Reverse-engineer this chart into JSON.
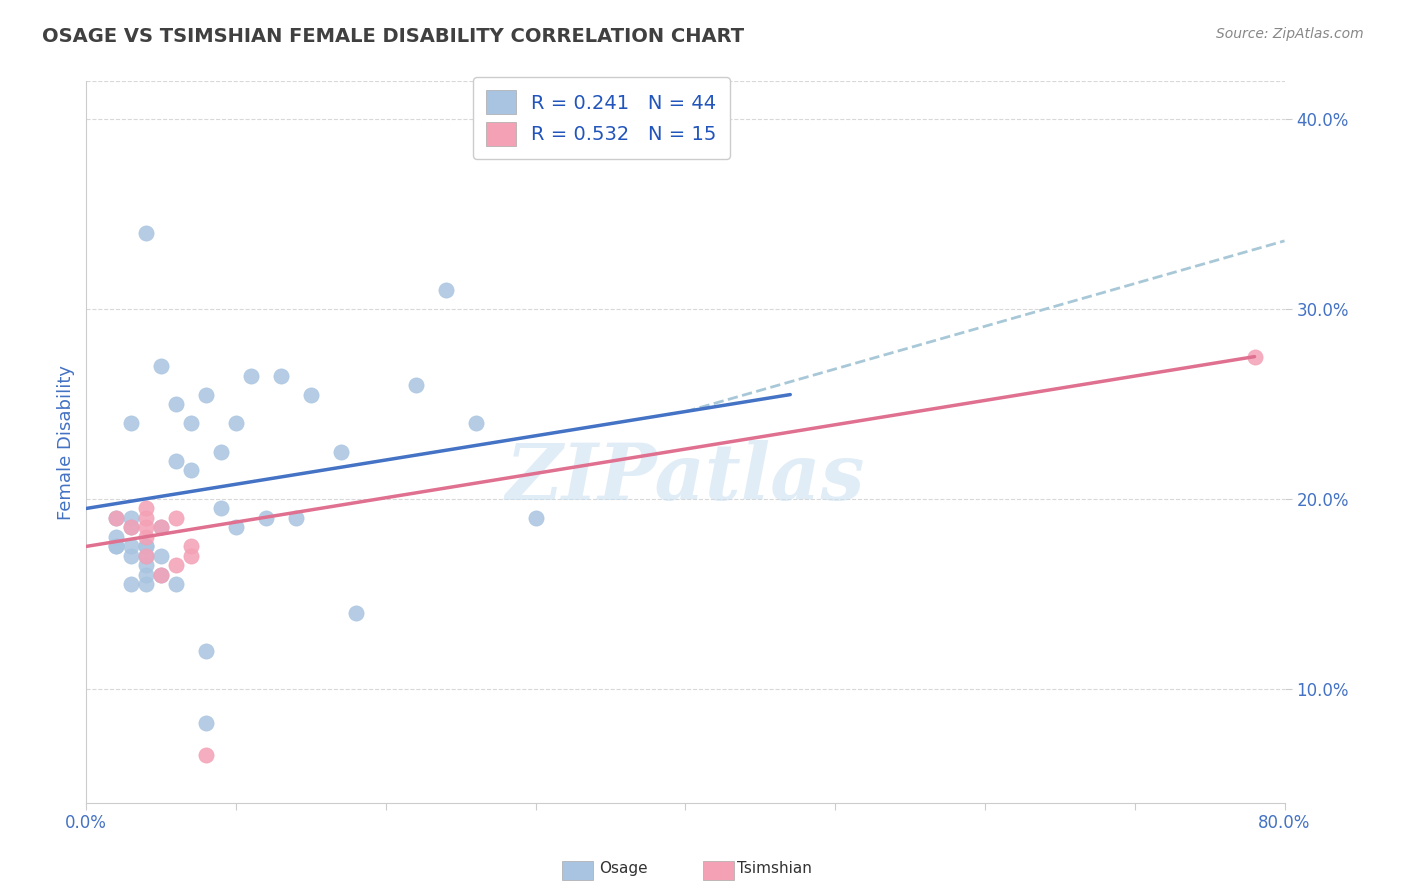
{
  "title": "OSAGE VS TSIMSHIAN FEMALE DISABILITY CORRELATION CHART",
  "source": "Source: ZipAtlas.com",
  "ylabel": "Female Disability",
  "xlim": [
    0.0,
    0.8
  ],
  "ylim": [
    0.04,
    0.42
  ],
  "xticks": [
    0.0,
    0.1,
    0.2,
    0.3,
    0.4,
    0.5,
    0.6,
    0.7,
    0.8
  ],
  "yticks": [
    0.1,
    0.2,
    0.3,
    0.4
  ],
  "ytick_labels": [
    "10.0%",
    "20.0%",
    "30.0%",
    "40.0%"
  ],
  "osage_color": "#a8c4e0",
  "tsimshian_color": "#f4a0b5",
  "osage_line_color": "#4472c4",
  "tsimshian_line_color": "#e07090",
  "extend_line_color": "#a8c8d8",
  "osage_R": 0.241,
  "osage_N": 44,
  "tsimshian_R": 0.532,
  "tsimshian_N": 15,
  "legend_R_color": "#2255bb",
  "watermark": "ZIPatlas",
  "osage_scatter_x": [
    0.02,
    0.02,
    0.02,
    0.02,
    0.03,
    0.03,
    0.03,
    0.03,
    0.03,
    0.03,
    0.04,
    0.04,
    0.04,
    0.04,
    0.04,
    0.04,
    0.04,
    0.05,
    0.05,
    0.05,
    0.05,
    0.06,
    0.06,
    0.06,
    0.07,
    0.07,
    0.08,
    0.08,
    0.08,
    0.09,
    0.09,
    0.1,
    0.1,
    0.11,
    0.12,
    0.13,
    0.14,
    0.15,
    0.17,
    0.18,
    0.22,
    0.24,
    0.26,
    0.3
  ],
  "osage_scatter_y": [
    0.175,
    0.175,
    0.18,
    0.19,
    0.155,
    0.17,
    0.175,
    0.185,
    0.19,
    0.24,
    0.155,
    0.16,
    0.165,
    0.17,
    0.175,
    0.175,
    0.34,
    0.16,
    0.17,
    0.185,
    0.27,
    0.155,
    0.22,
    0.25,
    0.215,
    0.24,
    0.082,
    0.12,
    0.255,
    0.195,
    0.225,
    0.185,
    0.24,
    0.265,
    0.19,
    0.265,
    0.19,
    0.255,
    0.225,
    0.14,
    0.26,
    0.31,
    0.24,
    0.19
  ],
  "tsimshian_scatter_x": [
    0.02,
    0.03,
    0.04,
    0.04,
    0.04,
    0.04,
    0.04,
    0.05,
    0.05,
    0.06,
    0.06,
    0.07,
    0.07,
    0.08,
    0.78
  ],
  "tsimshian_scatter_y": [
    0.19,
    0.185,
    0.17,
    0.18,
    0.185,
    0.19,
    0.195,
    0.16,
    0.185,
    0.165,
    0.19,
    0.175,
    0.17,
    0.065,
    0.275
  ],
  "osage_line_x": [
    0.0,
    0.47
  ],
  "osage_line_y": [
    0.195,
    0.255
  ],
  "tsimshian_line_x": [
    0.0,
    0.78
  ],
  "tsimshian_line_y": [
    0.175,
    0.275
  ],
  "extend_line_x": [
    0.4,
    0.8
  ],
  "extend_line_y": [
    0.246,
    0.336
  ],
  "background_color": "#ffffff",
  "grid_color": "#d8d8d8",
  "title_color": "#404040",
  "axis_label_color": "#4472c4",
  "tick_color": "#4472c4"
}
